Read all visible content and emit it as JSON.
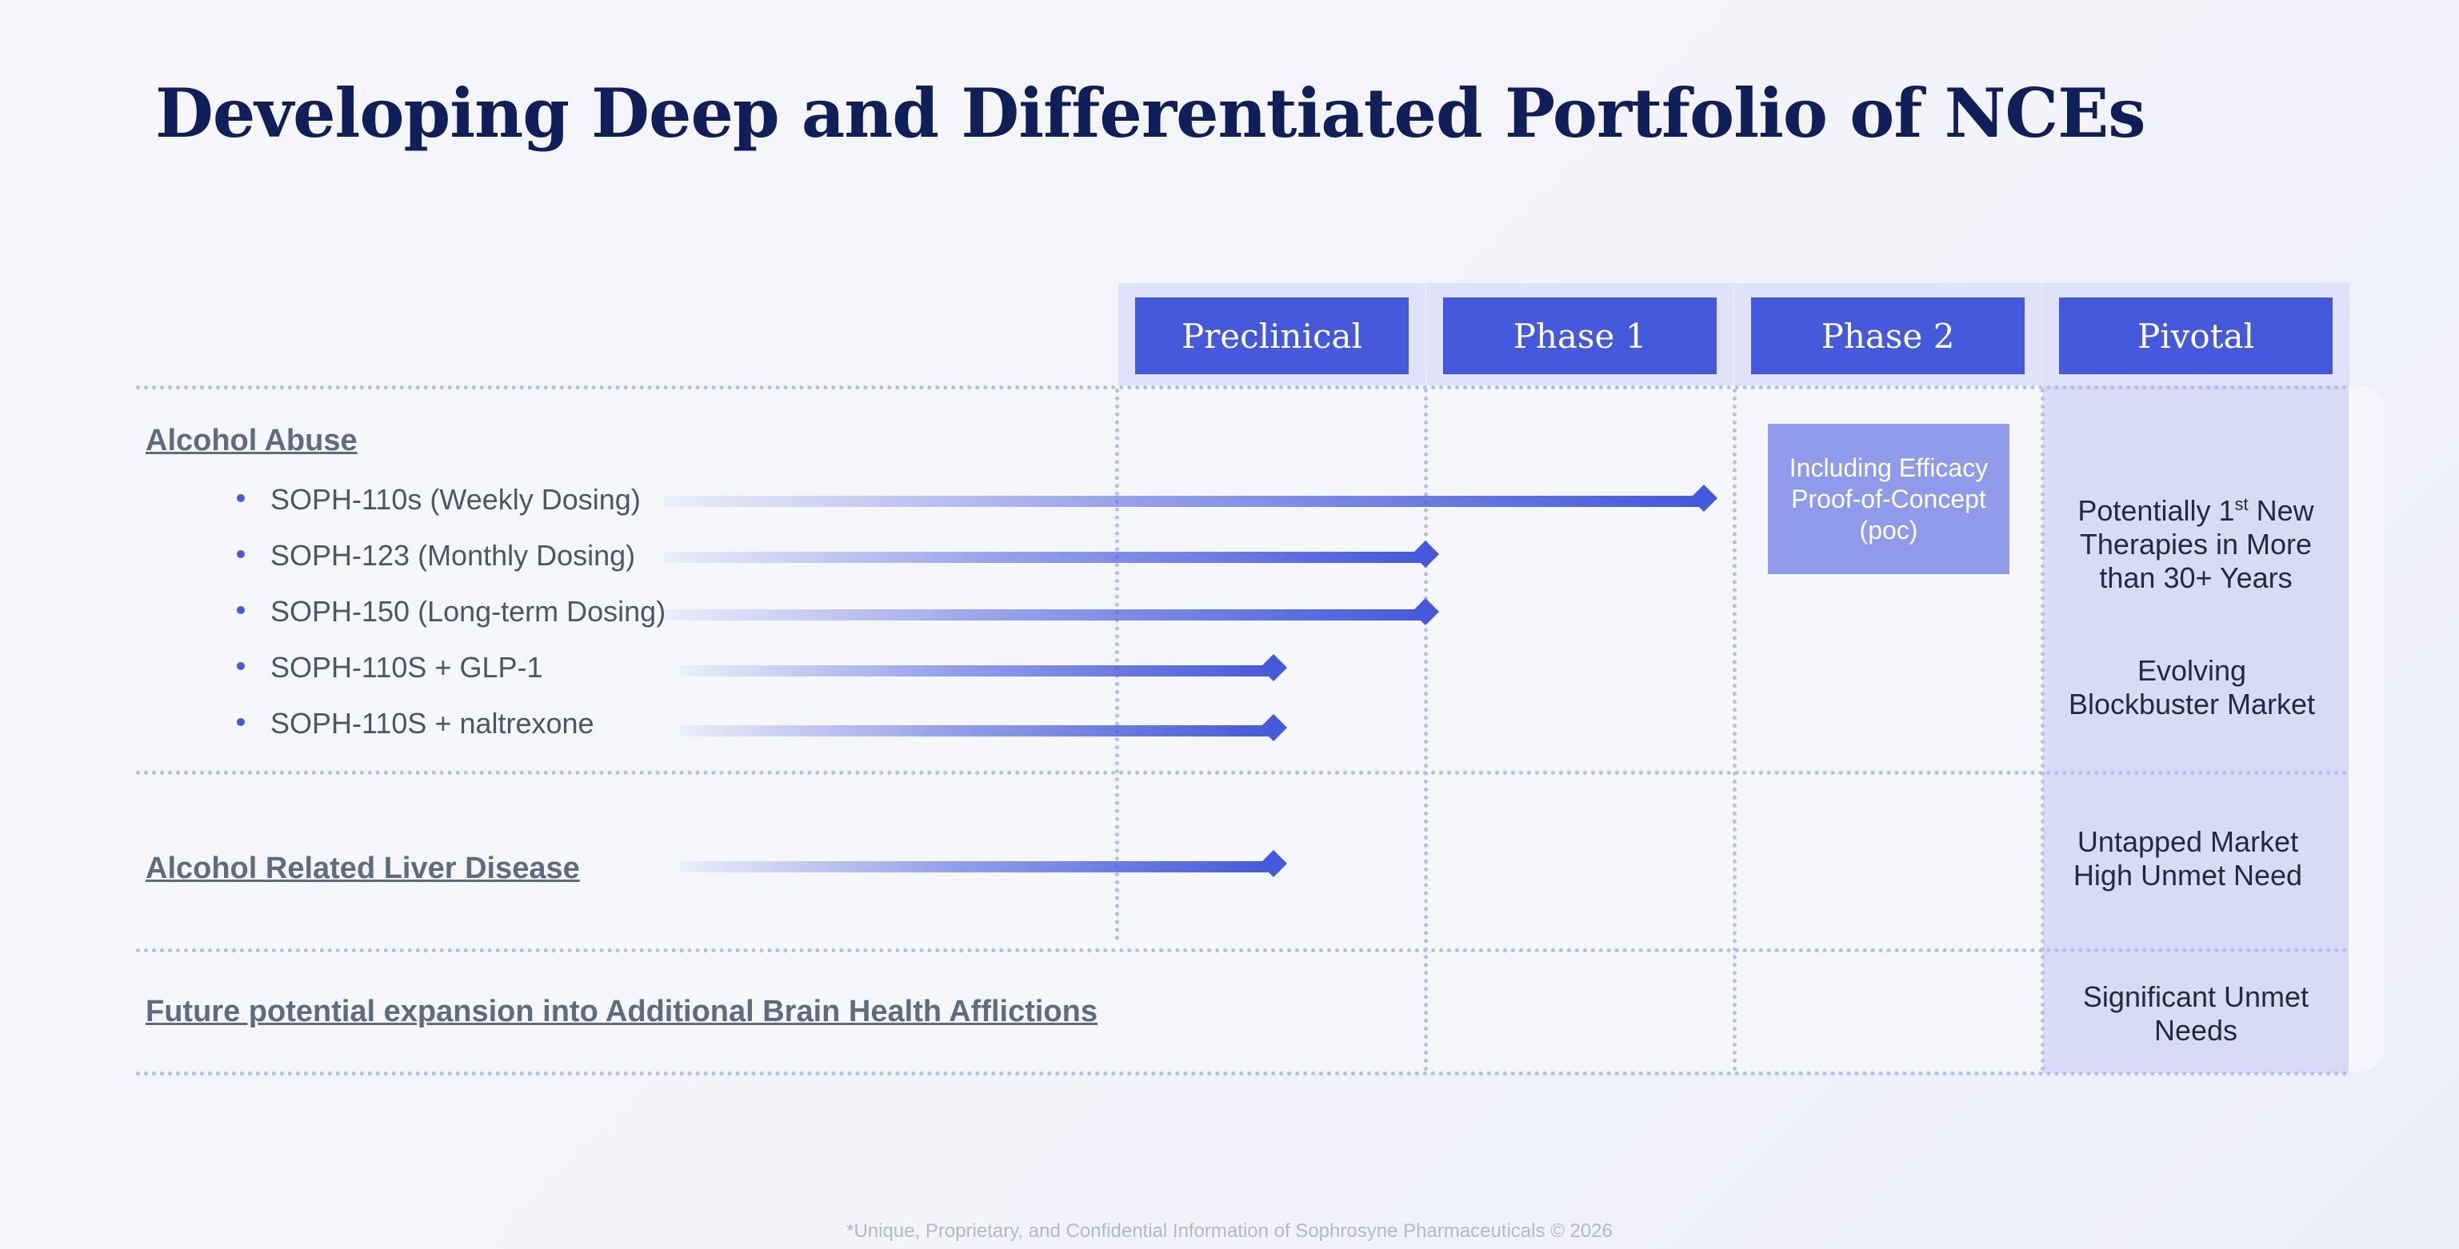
{
  "title": "Developing Deep and Differentiated Portfolio of NCEs",
  "stages": [
    "Preclinical",
    "Phase 1",
    "Phase  2",
    "Pivotal"
  ],
  "rows": {
    "alcohol_abuse": {
      "heading": "Alcohol Abuse",
      "items": [
        {
          "label": "SOPH-110s (Weekly Dosing)"
        },
        {
          "label": "SOPH-123 (Monthly Dosing)"
        },
        {
          "label": "SOPH-150 (Long-term Dosing)"
        },
        {
          "label": "SOPH-110S + GLP-1"
        },
        {
          "label": "SOPH-110S + naltrexone"
        }
      ]
    },
    "arld": {
      "heading": "Alcohol Related Liver Disease"
    },
    "future": {
      "heading": "Future potential expansion into Additional Brain Health Afflictions"
    }
  },
  "poc_note": "Including Efficacy Proof-of-Concept (poc)",
  "pivotal_notes": {
    "therapies_a": "Potentially 1",
    "therapies_sup": "st",
    "therapies_b": " New Therapies in More than 30+ Years",
    "blockbuster": "Evolving Blockbuster Market",
    "untapped": "Untapped Market High Unmet Need",
    "significant": "Significant Unmet Needs"
  },
  "footer": "*Unique, Proprietary, and Confidential Information of Sophrosyne Pharmaceuticals © 2026",
  "colors": {
    "accent": "#4459dc",
    "title": "#0f1f5a",
    "poc_box": "#8f9aea",
    "pivotal_column": "#d7dbf6"
  }
}
